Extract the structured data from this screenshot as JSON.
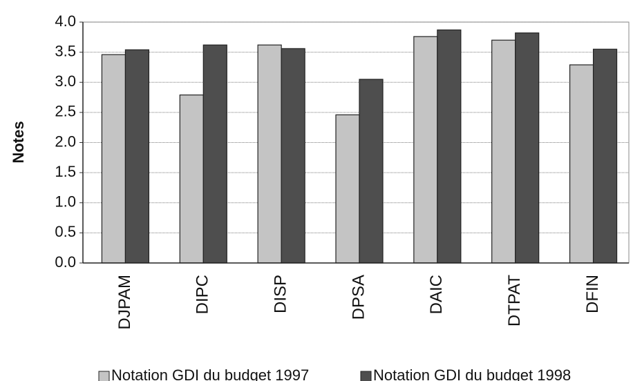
{
  "chart_data": {
    "type": "bar",
    "y_label": "Notes",
    "categories": [
      "DJPAM",
      "DIPC",
      "DISP",
      "DPSA",
      "DAIC",
      "DTPAT",
      "DFIN"
    ],
    "series": [
      {
        "name": "Notation GDI du budget 1997",
        "color": "#c4c4c4",
        "values": [
          3.46,
          2.79,
          3.62,
          2.46,
          3.76,
          3.7,
          3.29
        ]
      },
      {
        "name": "Notation GDI du budget 1998",
        "color": "#4e4e4e",
        "values": [
          3.54,
          3.62,
          3.56,
          3.05,
          3.87,
          3.82,
          3.55
        ]
      }
    ],
    "ylim": [
      0,
      4
    ],
    "yticks": [
      {
        "value": 0,
        "label": "0.0"
      },
      0.5,
      {
        "value": 1,
        "label": "1.0"
      },
      1.5,
      {
        "value": 2,
        "label": "2.0"
      },
      2.5,
      {
        "value": 3,
        "label": "3.0"
      },
      3.5,
      {
        "value": 4,
        "label": "4.0"
      }
    ],
    "grid": true,
    "legend": "bottom"
  }
}
